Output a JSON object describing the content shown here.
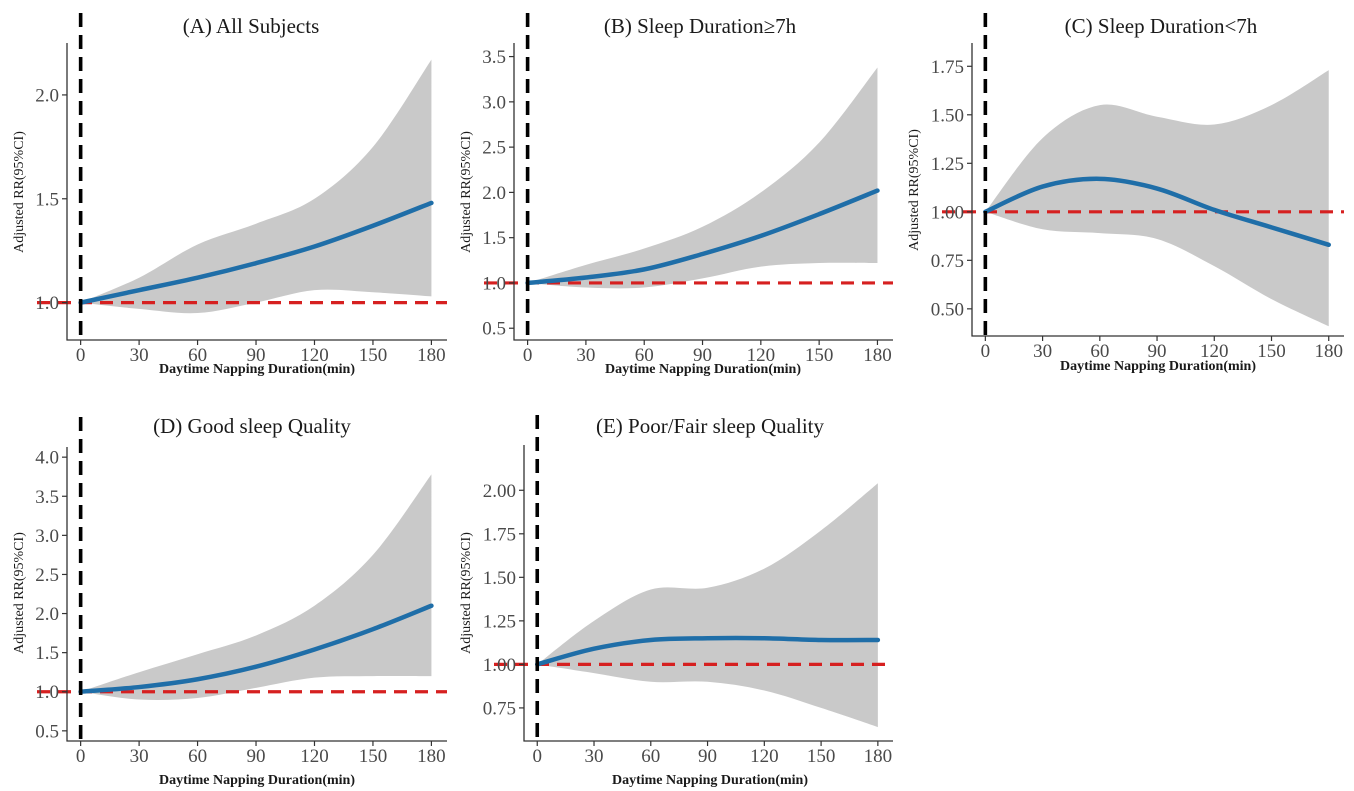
{
  "colors": {
    "curve": "#1f6ea8",
    "band": "#c9c9c9",
    "reference": "#d62020",
    "vline": "#000000",
    "axis": "#333333",
    "tick_text": "#4a4a4a"
  },
  "chart_data": [
    {
      "id": "A",
      "type": "line",
      "title": "(A) All Subjects",
      "xlabel": "Daytime Napping Duration(min)",
      "ylabel": "Adjusted RR(95%CI)",
      "xlim": [
        -7,
        188
      ],
      "ylim": [
        0.82,
        2.25
      ],
      "xticks": [
        0,
        30,
        60,
        90,
        120,
        150,
        180
      ],
      "yticks": [
        1.0,
        1.5,
        2.0
      ],
      "ytick_labels": [
        "1.0",
        "1.5",
        "2.0"
      ],
      "reference_y": 1.0,
      "vline_x": 0,
      "grid": false,
      "series": [
        {
          "x": [
            0,
            30,
            60,
            90,
            120,
            150,
            180
          ],
          "y": [
            1.0,
            1.06,
            1.12,
            1.19,
            1.27,
            1.37,
            1.48
          ],
          "lower": [
            1.0,
            0.97,
            0.95,
            1.0,
            1.06,
            1.05,
            1.03
          ],
          "upper": [
            1.0,
            1.12,
            1.28,
            1.38,
            1.5,
            1.75,
            2.17
          ]
        }
      ]
    },
    {
      "id": "B",
      "type": "line",
      "title": "(B) Sleep Duration≥7h",
      "xlabel": "Daytime Napping Duration(min)",
      "ylabel": "Adjusted RR(95%CI)",
      "xlim": [
        -7,
        188
      ],
      "ylim": [
        0.37,
        3.65
      ],
      "xticks": [
        0,
        30,
        60,
        90,
        120,
        150,
        180
      ],
      "yticks": [
        0.5,
        1.0,
        1.5,
        2.0,
        2.5,
        3.0,
        3.5
      ],
      "ytick_labels": [
        "0.5",
        "1.0",
        "1.5",
        "2.0",
        "2.5",
        "3.0",
        "3.5"
      ],
      "reference_y": 1.0,
      "vline_x": 0,
      "grid": false,
      "series": [
        {
          "x": [
            0,
            30,
            60,
            90,
            120,
            150,
            180
          ],
          "y": [
            1.0,
            1.06,
            1.15,
            1.32,
            1.52,
            1.76,
            2.02
          ],
          "lower": [
            1.0,
            0.95,
            0.95,
            1.05,
            1.18,
            1.22,
            1.22
          ],
          "upper": [
            1.0,
            1.2,
            1.38,
            1.62,
            2.0,
            2.55,
            3.38
          ]
        }
      ]
    },
    {
      "id": "C",
      "type": "line",
      "title": "(C) Sleep Duration<7h",
      "xlabel": "Daytime Napping Duration(min)",
      "ylabel": "Adjusted RR(95%CI)",
      "xlim": [
        -7,
        188
      ],
      "ylim": [
        0.36,
        1.87
      ],
      "xticks": [
        0,
        30,
        60,
        90,
        120,
        150,
        180
      ],
      "yticks": [
        0.5,
        0.75,
        1.0,
        1.25,
        1.5,
        1.75
      ],
      "ytick_labels": [
        "0.50",
        "0.75",
        "1.00",
        "1.25",
        "1.50",
        "1.75"
      ],
      "reference_y": 1.0,
      "vline_x": 0,
      "grid": false,
      "series": [
        {
          "x": [
            0,
            30,
            60,
            90,
            120,
            150,
            180
          ],
          "y": [
            1.0,
            1.13,
            1.17,
            1.12,
            1.01,
            0.92,
            0.83
          ],
          "lower": [
            1.0,
            0.91,
            0.89,
            0.86,
            0.72,
            0.55,
            0.41
          ],
          "upper": [
            1.0,
            1.38,
            1.55,
            1.49,
            1.45,
            1.55,
            1.73
          ]
        }
      ]
    },
    {
      "id": "D",
      "type": "line",
      "title": "(D) Good sleep Quality",
      "xlabel": "Daytime Napping Duration(min)",
      "ylabel": "Adjusted RR(95%CI)",
      "xlim": [
        -7,
        188
      ],
      "ylim": [
        0.37,
        4.13
      ],
      "xticks": [
        0,
        30,
        60,
        90,
        120,
        150,
        180
      ],
      "yticks": [
        0.5,
        1.0,
        1.5,
        2.0,
        2.5,
        3.0,
        3.5,
        4.0
      ],
      "ytick_labels": [
        "0.5",
        "1.0",
        "1.5",
        "2.0",
        "2.5",
        "3.0",
        "3.5",
        "4.0"
      ],
      "reference_y": 1.0,
      "vline_x": 0,
      "grid": false,
      "series": [
        {
          "x": [
            0,
            30,
            60,
            90,
            120,
            150,
            180
          ],
          "y": [
            1.0,
            1.06,
            1.16,
            1.32,
            1.54,
            1.8,
            2.1
          ],
          "lower": [
            1.0,
            0.9,
            0.92,
            1.05,
            1.18,
            1.2,
            1.2
          ],
          "upper": [
            1.0,
            1.25,
            1.48,
            1.72,
            2.1,
            2.75,
            3.78
          ]
        }
      ]
    },
    {
      "id": "E",
      "type": "line",
      "title": "(E) Poor/Fair sleep Quality",
      "xlabel": "Daytime Napping Duration(min)",
      "ylabel": "Adjusted RR(95%CI)",
      "xlim": [
        -7,
        188
      ],
      "ylim": [
        0.56,
        2.26
      ],
      "xticks": [
        0,
        30,
        60,
        90,
        120,
        150,
        180
      ],
      "yticks": [
        0.75,
        1.0,
        1.25,
        1.5,
        1.75,
        2.0
      ],
      "ytick_labels": [
        "0.75",
        "1.00",
        "1.25",
        "1.50",
        "1.75",
        "2.00"
      ],
      "reference_y": 1.0,
      "vline_x": 0,
      "grid": false,
      "series": [
        {
          "x": [
            0,
            30,
            60,
            90,
            120,
            150,
            180
          ],
          "y": [
            1.0,
            1.09,
            1.14,
            1.15,
            1.15,
            1.14,
            1.14
          ],
          "lower": [
            1.0,
            0.95,
            0.9,
            0.9,
            0.85,
            0.75,
            0.64
          ],
          "upper": [
            1.0,
            1.25,
            1.43,
            1.44,
            1.55,
            1.77,
            2.04
          ]
        }
      ]
    }
  ]
}
